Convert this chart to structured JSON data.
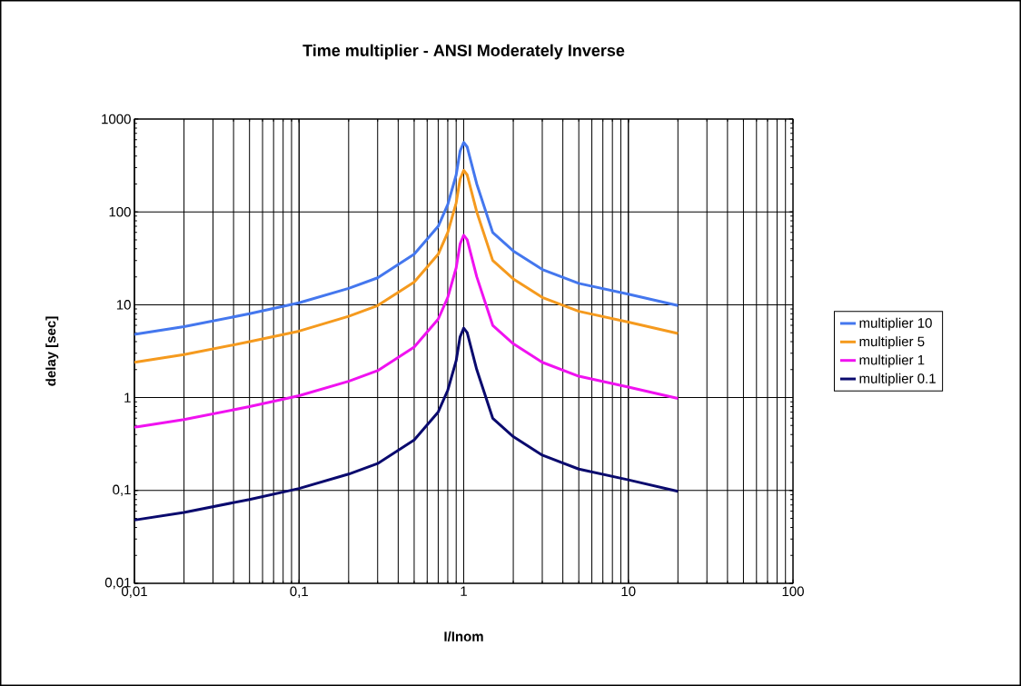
{
  "chart_data": {
    "type": "line",
    "title": "Time multiplier - ANSI Moderately Inverse",
    "xlabel": "I/Inom",
    "ylabel": "delay [sec]",
    "x": [
      0.01,
      0.02,
      0.05,
      0.1,
      0.2,
      0.3,
      0.5,
      0.7,
      0.8,
      0.9,
      0.95,
      1.0,
      1.05,
      1.2,
      1.5,
      2,
      3,
      5,
      10,
      20
    ],
    "series": [
      {
        "name": "multiplier 10",
        "color": "#4477ee",
        "values": [
          4.8,
          5.8,
          8,
          10.5,
          15,
          19.5,
          35,
          70,
          120,
          250,
          450,
          560,
          500,
          200,
          60,
          38,
          24,
          17,
          13,
          9.8
        ]
      },
      {
        "name": "multiplier 5",
        "color": "#f59a1e",
        "values": [
          2.4,
          2.9,
          4,
          5.2,
          7.5,
          9.8,
          17.5,
          35,
          60,
          125,
          225,
          280,
          250,
          100,
          30,
          19,
          12,
          8.5,
          6.5,
          4.9
        ]
      },
      {
        "name": "multiplier 1",
        "color": "#f012f0",
        "values": [
          0.48,
          0.58,
          0.8,
          1.05,
          1.5,
          1.95,
          3.5,
          7,
          12,
          25,
          45,
          56,
          50,
          20,
          6,
          3.8,
          2.4,
          1.7,
          1.3,
          0.98
        ]
      },
      {
        "name": "multiplier 0.1",
        "color": "#0a0a6e",
        "values": [
          0.048,
          0.058,
          0.08,
          0.105,
          0.15,
          0.195,
          0.35,
          0.7,
          1.2,
          2.5,
          4.5,
          5.6,
          5,
          2,
          0.6,
          0.38,
          0.24,
          0.17,
          0.13,
          0.098
        ]
      }
    ],
    "log": "xy",
    "xlim": [
      0.01,
      100
    ],
    "ylim": [
      0.01,
      1000
    ],
    "xticks": [
      {
        "value": 0.01,
        "label": "0,01"
      },
      {
        "value": 0.1,
        "label": "0,1"
      },
      1,
      10,
      100
    ],
    "yticks": [
      {
        "value": 0.01,
        "label": "0,01"
      },
      {
        "value": 0.1,
        "label": "0,1"
      },
      1,
      10,
      100,
      1000
    ],
    "grid": true,
    "legend": "right",
    "marker": "none",
    "line_style": "solid"
  }
}
